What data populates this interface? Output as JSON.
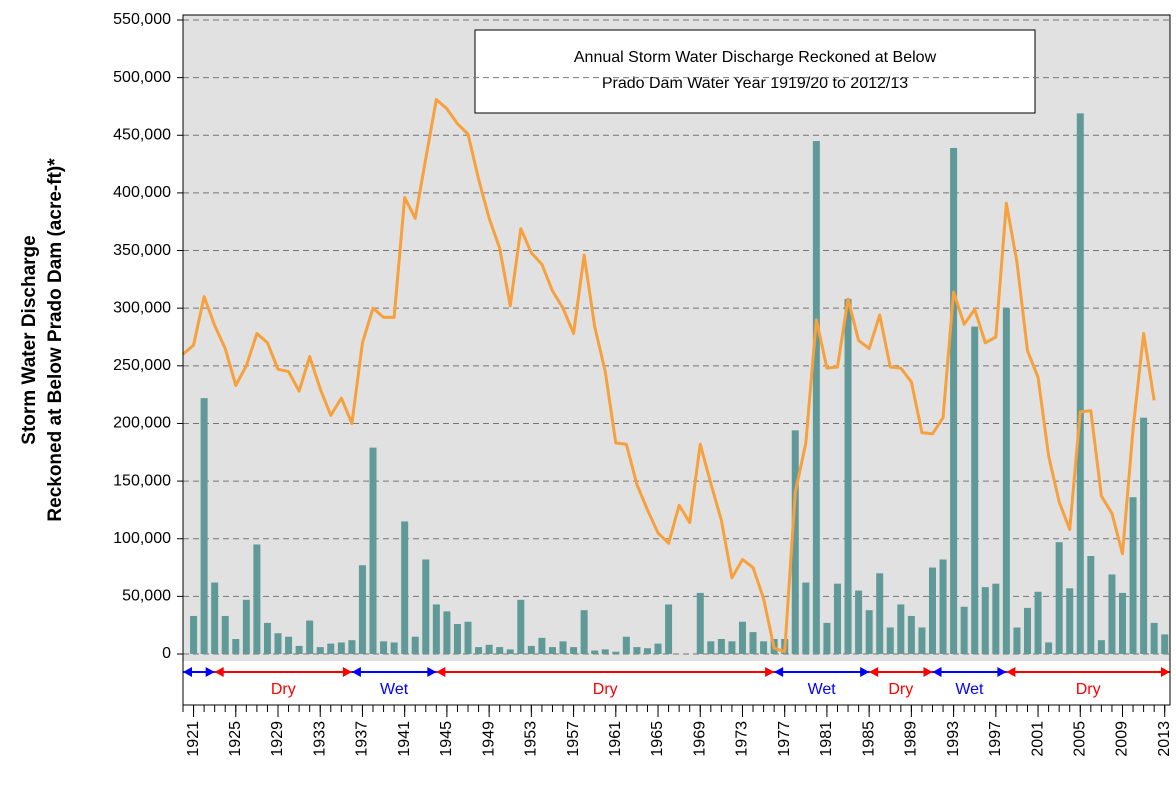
{
  "chart_data": {
    "type": "combo",
    "title_lines": [
      "Annual Storm Water Discharge Reckoned at Below",
      "Prado Dam Water Year 1919/20 to 2012/13"
    ],
    "y_label_lines": [
      "Storm Water Discharge",
      "Reckoned at Below Prado Dam (acre-ft)*"
    ],
    "x": [
      1920,
      1921,
      1922,
      1923,
      1924,
      1925,
      1926,
      1927,
      1928,
      1929,
      1930,
      1931,
      1932,
      1933,
      1934,
      1935,
      1936,
      1937,
      1938,
      1939,
      1940,
      1941,
      1942,
      1943,
      1944,
      1945,
      1946,
      1947,
      1948,
      1949,
      1950,
      1951,
      1952,
      1953,
      1954,
      1955,
      1956,
      1957,
      1958,
      1959,
      1960,
      1961,
      1962,
      1963,
      1964,
      1965,
      1966,
      1967,
      1968,
      1969,
      1970,
      1971,
      1972,
      1973,
      1974,
      1975,
      1976,
      1977,
      1978,
      1979,
      1980,
      1981,
      1982,
      1983,
      1984,
      1985,
      1986,
      1987,
      1988,
      1989,
      1990,
      1991,
      1992,
      1993,
      1994,
      1995,
      1996,
      1997,
      1998,
      1999,
      2000,
      2001,
      2002,
      2003,
      2004,
      2005,
      2006,
      2007,
      2008,
      2009,
      2010,
      2011,
      2012,
      2013
    ],
    "series": [
      {
        "type": "bar",
        "color": "#5f9a98",
        "values": [
          null,
          33000,
          222000,
          62000,
          33000,
          13000,
          47000,
          95000,
          27000,
          18000,
          15000,
          7000,
          29000,
          6000,
          9000,
          10000,
          12000,
          77000,
          179000,
          11000,
          10000,
          115000,
          15000,
          82000,
          43000,
          37000,
          26000,
          28000,
          6000,
          8000,
          6000,
          4000,
          47000,
          7000,
          14000,
          6000,
          11000,
          6000,
          38000,
          3000,
          4000,
          2000,
          15000,
          6000,
          5000,
          9000,
          43000,
          0,
          0,
          53000,
          11000,
          13000,
          11000,
          28000,
          19000,
          11000,
          13000,
          13000,
          194000,
          62000,
          445000,
          27000,
          61000,
          308000,
          55000,
          38000,
          70000,
          23000,
          43000,
          33000,
          23000,
          75000,
          82000,
          439000,
          41000,
          284000,
          58000,
          61000,
          300000,
          23000,
          40000,
          54000,
          10000,
          97000,
          57000,
          469000,
          85000,
          12000,
          69000,
          53000,
          136000,
          205000,
          27000,
          17000
        ]
      },
      {
        "type": "line",
        "color": "#f7a03c",
        "values": [
          260000,
          268000,
          310000,
          285000,
          265000,
          233000,
          250000,
          278000,
          270000,
          247000,
          245000,
          228000,
          258000,
          230000,
          207000,
          222000,
          200000,
          270000,
          300000,
          292000,
          292000,
          396000,
          378000,
          430000,
          481000,
          473000,
          460000,
          451000,
          412000,
          378000,
          352000,
          302000,
          369000,
          348000,
          338000,
          315000,
          300000,
          278000,
          346000,
          284000,
          245000,
          183000,
          182000,
          147000,
          125000,
          105000,
          96000,
          129000,
          114000,
          182000,
          148000,
          116000,
          66000,
          82000,
          75000,
          48000,
          5000,
          2000,
          140000,
          183000,
          290000,
          248000,
          249000,
          308000,
          272000,
          265000,
          294000,
          249000,
          248000,
          236000,
          192000,
          191000,
          205000,
          314000,
          286000,
          299000,
          270000,
          275000,
          391000,
          340000,
          263000,
          240000,
          172000,
          132000,
          108000,
          210000,
          211000,
          137000,
          122000,
          87000,
          195000,
          278000,
          220000,
          null
        ]
      }
    ],
    "periods": [
      {
        "start": 1920,
        "end": 1923,
        "color": "#0000ff"
      },
      {
        "start": 1923,
        "end": 1936,
        "label": "Dry",
        "color": "#ff0000"
      },
      {
        "start": 1936,
        "end": 1944,
        "label": "Wet",
        "color": "#0000ff"
      },
      {
        "start": 1944,
        "end": 1976,
        "label": "Dry",
        "color": "#ff0000"
      },
      {
        "start": 1976,
        "end": 1985,
        "label": "Wet",
        "color": "#0000ff"
      },
      {
        "start": 1985,
        "end": 1991,
        "label": "Dry",
        "color": "#ff0000"
      },
      {
        "start": 1991,
        "end": 1998,
        "label": "Wet",
        "color": "#0000ff"
      },
      {
        "start": 1998,
        "end": 2013.5,
        "label": "Dry",
        "color": "#ff0000"
      }
    ],
    "xlim": [
      1920,
      2013.5
    ],
    "xticks": [
      1921,
      1925,
      1929,
      1933,
      1937,
      1941,
      1945,
      1949,
      1953,
      1957,
      1961,
      1965,
      1969,
      1973,
      1977,
      1981,
      1985,
      1989,
      1993,
      1997,
      2001,
      2005,
      2009,
      2013
    ],
    "ylim": [
      0,
      550000
    ],
    "yticks": [
      0,
      {
        "value": 50000,
        "label": "50,000"
      },
      {
        "value": 100000,
        "label": "100,000"
      },
      {
        "value": 150000,
        "label": "150,000"
      },
      {
        "value": 200000,
        "label": "200,000"
      },
      {
        "value": 250000,
        "label": "250,000"
      },
      {
        "value": 300000,
        "label": "300,000"
      },
      {
        "value": 350000,
        "label": "350,000"
      },
      {
        "value": 400000,
        "label": "400,000"
      },
      {
        "value": 450000,
        "label": "450,000"
      },
      {
        "value": 500000,
        "label": "500,000"
      },
      {
        "value": 550000,
        "label": "550,000"
      }
    ],
    "grid": true
  }
}
